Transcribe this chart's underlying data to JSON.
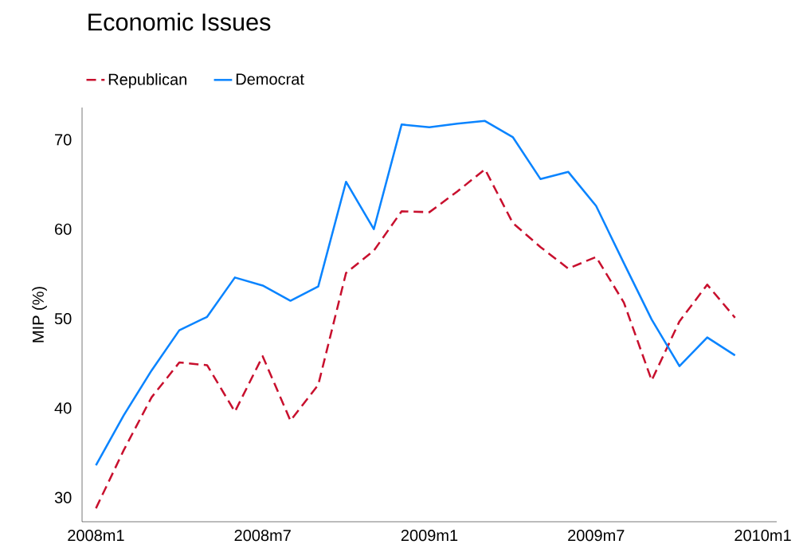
{
  "chart_data": {
    "type": "line",
    "title": "Economic Issues",
    "ylabel": "MIP (%)",
    "x": [
      "2008-01",
      "2008-02",
      "2008-03",
      "2008-04",
      "2008-05",
      "2008-06",
      "2008-07",
      "2008-08",
      "2008-09",
      "2008-10",
      "2008-11",
      "2008-12",
      "2009-01",
      "2009-02",
      "2009-03",
      "2009-04",
      "2009-05",
      "2009-06",
      "2009-07",
      "2009-08",
      "2009-09",
      "2009-10",
      "2009-11",
      "2009-12"
    ],
    "series": [
      {
        "name": "Republican",
        "color": "#c8102e",
        "line_style": "dashed",
        "values": [
          28.8,
          35.3,
          41.2,
          45.1,
          44.8,
          39.6,
          45.8,
          38.6,
          42.6,
          55.1,
          57.6,
          62.0,
          61.9,
          64.2,
          66.7,
          60.7,
          58.0,
          55.6,
          56.9,
          51.8,
          43.1,
          49.7,
          53.8,
          50.1
        ]
      },
      {
        "name": "Democrat",
        "color": "#0a84ff",
        "line_style": "solid",
        "values": [
          33.6,
          39.2,
          44.2,
          48.7,
          50.2,
          54.6,
          53.7,
          52.0,
          53.6,
          65.3,
          60.0,
          71.7,
          71.4,
          71.8,
          72.1,
          70.3,
          65.6,
          66.4,
          62.6,
          56.2,
          49.9,
          44.7,
          47.9,
          45.9
        ]
      }
    ],
    "xlim": [
      "2007-12-16",
      "2010-01-16"
    ],
    "xticks": [
      {
        "value": "2008-01",
        "label": "2008m1"
      },
      {
        "value": "2008-07",
        "label": "2008m7"
      },
      {
        "value": "2009-01",
        "label": "2009m1"
      },
      {
        "value": "2009-07",
        "label": "2009m7"
      },
      {
        "value": "2010-01",
        "label": "2010m1"
      }
    ],
    "ylim": [
      27.3,
      73.6
    ],
    "yticks": [
      30,
      40,
      50,
      60,
      70
    ],
    "legend": "top left",
    "grid": false,
    "marker": "none"
  }
}
